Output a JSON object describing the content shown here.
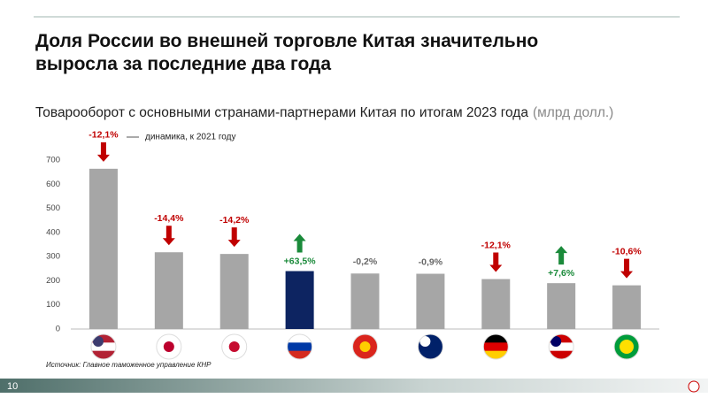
{
  "page_number": "10",
  "chart_data": {
    "type": "bar",
    "title": "Доля России во внешней торговле Китая значительно выросла за последние два года",
    "subtitle": "Товарооборот с основными странами-партнерами Китая по итогам 2023 года",
    "unit": "(млрд долл.)",
    "legend_note": "динамика, к 2021 году",
    "source": "Источник: Главное таможенное управление КНР",
    "categories": [
      null,
      null,
      null,
      null,
      null,
      null,
      null,
      null,
      null
    ],
    "values": [
      664,
      318,
      311,
      240,
      230,
      229,
      207,
      190,
      181
    ],
    "colors": [
      "#a6a6a6",
      "#a6a6a6",
      "#a6a6a6",
      "#0d2461",
      "#a6a6a6",
      "#a6a6a6",
      "#a6a6a6",
      "#a6a6a6",
      "#a6a6a6"
    ],
    "changes": [
      -12.1,
      -14.4,
      -14.2,
      63.5,
      -0.2,
      -0.9,
      -12.1,
      7.6,
      -10.6
    ],
    "change_labels": [
      "-12,1%",
      "-14,4%",
      "-14,2%",
      "+63,5%",
      "-0,2%",
      "-0,9%",
      "-12,1%",
      "+7,6%",
      "-10,6%"
    ],
    "ylim": [
      0,
      700
    ],
    "yticks": [
      0,
      100,
      200,
      300,
      400,
      500,
      600,
      700
    ]
  }
}
